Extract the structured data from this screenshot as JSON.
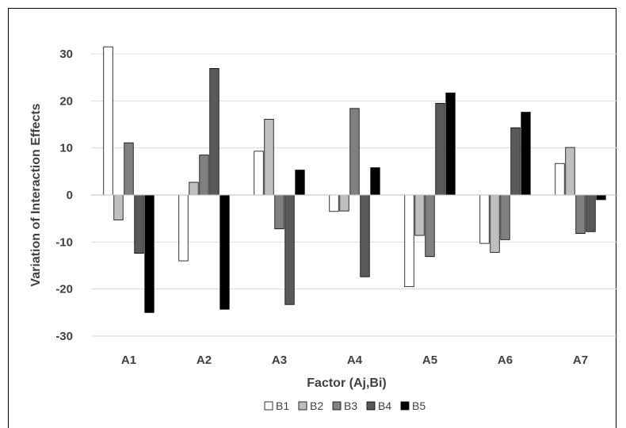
{
  "chart_data": {
    "type": "bar",
    "title": "",
    "xlabel": "Factor (Aj,Bi)",
    "ylabel": "Variation of Interaction Effects",
    "categories": [
      "A1",
      "A2",
      "A3",
      "A4",
      "A5",
      "A6",
      "A7"
    ],
    "ylim": [
      -30,
      30
    ],
    "yticks": [
      30,
      20,
      10,
      0,
      -10,
      -20,
      -30
    ],
    "grid": true,
    "legend_position": "bottom",
    "series": [
      {
        "name": "B1",
        "color": "#ffffff",
        "values": [
          31.5,
          -14,
          9.3,
          -3.5,
          -19.5,
          -10.3,
          6.7
        ]
      },
      {
        "name": "B2",
        "color": "#bfbfbf",
        "values": [
          -5.3,
          2.7,
          16.1,
          -3.4,
          -8.6,
          -12.2,
          10.1
        ]
      },
      {
        "name": "B3",
        "color": "#808080",
        "values": [
          11.1,
          8.5,
          -7.2,
          18.4,
          -13.1,
          -9.5,
          -8.2
        ]
      },
      {
        "name": "B4",
        "color": "#595959",
        "values": [
          -12.4,
          26.9,
          -23.3,
          -17.4,
          19.5,
          14.3,
          -7.8
        ]
      },
      {
        "name": "B5",
        "color": "#000000",
        "values": [
          -25,
          -24.3,
          5.3,
          5.8,
          21.7,
          17.6,
          -1
        ]
      }
    ]
  }
}
